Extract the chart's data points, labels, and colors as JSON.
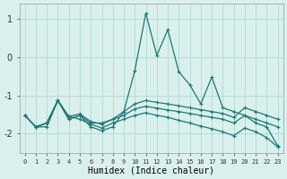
{
  "xlabel": "Humidex (Indice chaleur)",
  "bg_color": "#d9f0ed",
  "grid_color": "#b2d8d2",
  "line_color": "#1f7872",
  "x": [
    0,
    1,
    2,
    3,
    4,
    5,
    6,
    7,
    8,
    9,
    10,
    11,
    12,
    13,
    14,
    15,
    16,
    17,
    18,
    19,
    20,
    21,
    22,
    23
  ],
  "y_spike": [
    -1.52,
    -1.82,
    -1.82,
    -1.13,
    -1.62,
    -1.52,
    -1.82,
    -1.92,
    -1.82,
    -1.42,
    -0.35,
    1.15,
    0.05,
    0.72,
    -0.38,
    -0.72,
    -1.22,
    -0.52,
    -1.32,
    -1.42,
    -1.52,
    -1.72,
    -1.82,
    -2.32
  ],
  "y_upper": [
    -1.52,
    -1.82,
    -1.72,
    -1.13,
    -1.62,
    -1.52,
    -1.72,
    -1.72,
    -1.62,
    -1.42,
    -1.22,
    -1.13,
    -1.18,
    -1.22,
    -1.27,
    -1.32,
    -1.37,
    -1.42,
    -1.47,
    -1.57,
    -1.32,
    -1.42,
    -1.52,
    -1.62
  ],
  "y_mid1": [
    -1.52,
    -1.82,
    -1.72,
    -1.13,
    -1.55,
    -1.48,
    -1.68,
    -1.75,
    -1.62,
    -1.52,
    -1.35,
    -1.28,
    -1.33,
    -1.38,
    -1.42,
    -1.47,
    -1.52,
    -1.57,
    -1.62,
    -1.72,
    -1.52,
    -1.62,
    -1.72,
    -1.82
  ],
  "y_bottom": [
    -1.52,
    -1.82,
    -1.72,
    -1.13,
    -1.55,
    -1.62,
    -1.75,
    -1.85,
    -1.72,
    -1.62,
    -1.52,
    -1.45,
    -1.52,
    -1.57,
    -1.65,
    -1.72,
    -1.8,
    -1.87,
    -1.95,
    -2.05,
    -1.85,
    -1.95,
    -2.1,
    -2.35
  ],
  "ylim": [
    -2.5,
    1.4
  ],
  "xlim": [
    -0.5,
    23.5
  ],
  "yticks": [
    -2,
    -1,
    0,
    1
  ]
}
